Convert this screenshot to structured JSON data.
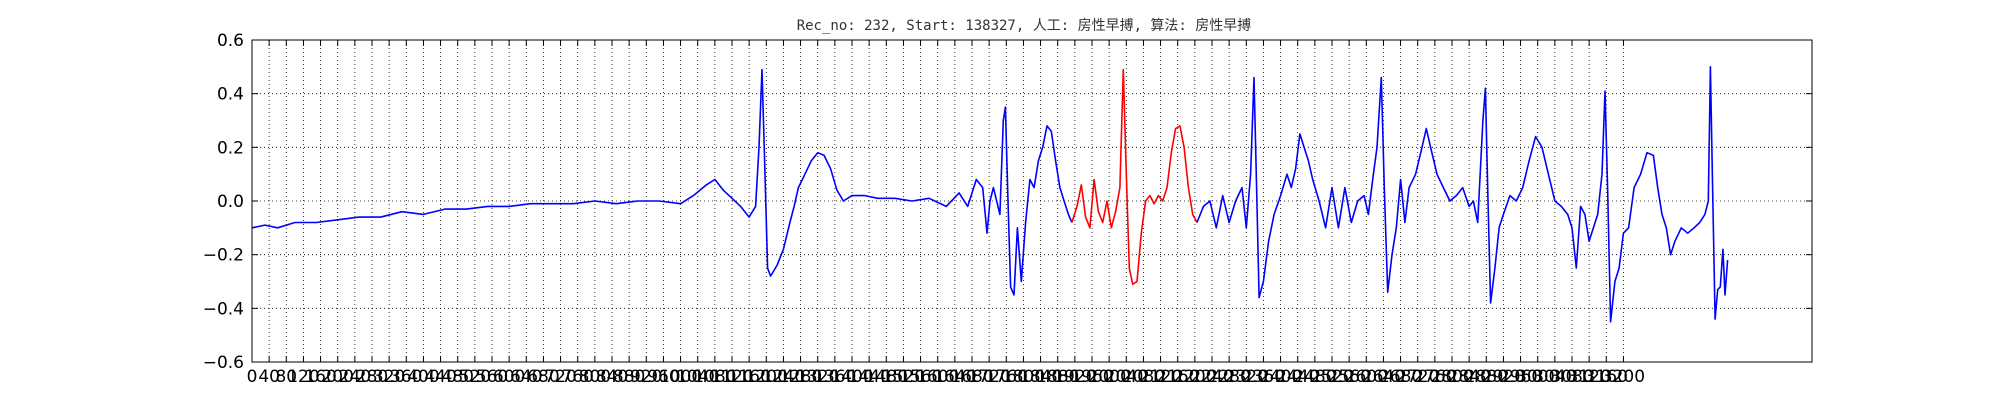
{
  "chart_data": {
    "type": "line",
    "title": "Rec_no: 232, Start: 138327, 人工: 房性早搏, 算法: 房性早搏",
    "xlabel": "",
    "ylabel": "",
    "xlim": [
      0,
      3640
    ],
    "ylim": [
      -0.6,
      0.6
    ],
    "grid": true,
    "xticks": [
      0,
      40,
      80,
      120,
      160,
      200,
      240,
      280,
      320,
      360,
      400,
      440,
      480,
      520,
      560,
      600,
      640,
      680,
      720,
      760,
      800,
      840,
      880,
      920,
      960,
      1000,
      1040,
      1080,
      1120,
      1160,
      1200,
      1240,
      1280,
      1320,
      1360,
      1400,
      1440,
      1480,
      1520,
      1560,
      1600,
      1640,
      1680,
      1720,
      1760,
      1800,
      1840,
      1880,
      1920,
      1960,
      2000,
      2040,
      2080,
      2120,
      2160,
      2200,
      2240,
      2280,
      2320,
      2360,
      2400,
      2440,
      2480,
      2520,
      2560,
      2600,
      2640,
      2680,
      2720,
      2760,
      2800,
      2840,
      2880,
      2920,
      2960,
      3000,
      3040,
      3080,
      3120,
      3160,
      3200
    ],
    "yticks": [
      -0.6,
      -0.4,
      -0.2,
      0.0,
      0.2,
      0.4,
      0.6
    ],
    "ytick_labels": [
      "−0.6",
      "−0.4",
      "−0.2",
      "0.0",
      "0.2",
      "0.4",
      "0.6"
    ],
    "series": [
      {
        "color": "#0000ff",
        "points": [
          [
            0,
            -0.1
          ],
          [
            30,
            -0.09
          ],
          [
            60,
            -0.1
          ],
          [
            100,
            -0.08
          ],
          [
            150,
            -0.08
          ],
          [
            200,
            -0.07
          ],
          [
            250,
            -0.06
          ],
          [
            300,
            -0.06
          ],
          [
            350,
            -0.04
          ],
          [
            400,
            -0.05
          ],
          [
            450,
            -0.03
          ],
          [
            500,
            -0.03
          ],
          [
            550,
            -0.02
          ],
          [
            600,
            -0.02
          ],
          [
            650,
            -0.01
          ],
          [
            700,
            -0.01
          ],
          [
            750,
            -0.01
          ],
          [
            800,
            0.0
          ],
          [
            850,
            -0.01
          ],
          [
            900,
            0.0
          ],
          [
            950,
            0.0
          ],
          [
            1000,
            -0.01
          ],
          [
            1030,
            0.02
          ],
          [
            1060,
            0.06
          ],
          [
            1080,
            0.08
          ],
          [
            1100,
            0.04
          ],
          [
            1120,
            0.01
          ],
          [
            1140,
            -0.02
          ],
          [
            1160,
            -0.06
          ],
          [
            1175,
            -0.02
          ],
          [
            1183,
            0.2
          ],
          [
            1190,
            0.49
          ],
          [
            1197,
            0.1
          ],
          [
            1203,
            -0.25
          ],
          [
            1210,
            -0.28
          ],
          [
            1225,
            -0.24
          ],
          [
            1240,
            -0.18
          ],
          [
            1255,
            -0.08
          ],
          [
            1265,
            -0.02
          ],
          [
            1275,
            0.05
          ],
          [
            1290,
            0.1
          ],
          [
            1305,
            0.15
          ],
          [
            1320,
            0.18
          ],
          [
            1335,
            0.17
          ],
          [
            1350,
            0.12
          ],
          [
            1365,
            0.04
          ],
          [
            1380,
            0.0
          ],
          [
            1400,
            0.02
          ],
          [
            1430,
            0.02
          ],
          [
            1460,
            0.01
          ],
          [
            1500,
            0.01
          ],
          [
            1540,
            0.0
          ],
          [
            1580,
            0.01
          ],
          [
            1620,
            -0.02
          ],
          [
            1650,
            0.03
          ],
          [
            1670,
            -0.02
          ],
          [
            1690,
            0.08
          ],
          [
            1705,
            0.05
          ],
          [
            1715,
            -0.12
          ],
          [
            1722,
            0.0
          ],
          [
            1730,
            0.05
          ],
          [
            1745,
            -0.05
          ],
          [
            1753,
            0.3
          ],
          [
            1758,
            0.35
          ],
          [
            1764,
            0.0
          ],
          [
            1770,
            -0.32
          ],
          [
            1778,
            -0.35
          ],
          [
            1786,
            -0.1
          ],
          [
            1795,
            -0.3
          ],
          [
            1805,
            -0.08
          ],
          [
            1815,
            0.08
          ],
          [
            1825,
            0.05
          ],
          [
            1835,
            0.15
          ],
          [
            1845,
            0.2
          ],
          [
            1855,
            0.28
          ],
          [
            1865,
            0.26
          ],
          [
            1875,
            0.15
          ],
          [
            1885,
            0.05
          ],
          [
            1895,
            0.0
          ],
          [
            1905,
            -0.05
          ],
          [
            1913,
            -0.08
          ]
        ]
      },
      {
        "color": "#ff0000",
        "points": [
          [
            1913,
            -0.08
          ],
          [
            1925,
            -0.02
          ],
          [
            1935,
            0.06
          ],
          [
            1945,
            -0.06
          ],
          [
            1955,
            -0.1
          ],
          [
            1965,
            0.08
          ],
          [
            1975,
            -0.04
          ],
          [
            1985,
            -0.08
          ],
          [
            1995,
            0.0
          ],
          [
            2005,
            -0.1
          ],
          [
            2015,
            -0.04
          ],
          [
            2025,
            0.05
          ],
          [
            2033,
            0.49
          ],
          [
            2040,
            0.1
          ],
          [
            2047,
            -0.25
          ],
          [
            2055,
            -0.31
          ],
          [
            2065,
            -0.3
          ],
          [
            2075,
            -0.12
          ],
          [
            2085,
            0.0
          ],
          [
            2095,
            0.02
          ],
          [
            2105,
            -0.01
          ],
          [
            2115,
            0.02
          ],
          [
            2125,
            0.0
          ],
          [
            2135,
            0.05
          ],
          [
            2145,
            0.18
          ],
          [
            2155,
            0.27
          ],
          [
            2165,
            0.28
          ],
          [
            2175,
            0.2
          ],
          [
            2185,
            0.05
          ],
          [
            2195,
            -0.05
          ],
          [
            2205,
            -0.08
          ]
        ]
      },
      {
        "color": "#0000ff",
        "points": [
          [
            2205,
            -0.08
          ],
          [
            2220,
            -0.02
          ],
          [
            2235,
            0.0
          ],
          [
            2250,
            -0.1
          ],
          [
            2265,
            0.02
          ],
          [
            2280,
            -0.08
          ],
          [
            2295,
            0.0
          ],
          [
            2310,
            0.05
          ],
          [
            2320,
            -0.1
          ],
          [
            2330,
            0.1
          ],
          [
            2338,
            0.46
          ],
          [
            2344,
            0.05
          ],
          [
            2350,
            -0.36
          ],
          [
            2360,
            -0.3
          ],
          [
            2372,
            -0.15
          ],
          [
            2385,
            -0.05
          ],
          [
            2400,
            0.02
          ],
          [
            2415,
            0.1
          ],
          [
            2425,
            0.05
          ],
          [
            2435,
            0.12
          ],
          [
            2445,
            0.25
          ],
          [
            2455,
            0.2
          ],
          [
            2465,
            0.15
          ],
          [
            2475,
            0.08
          ],
          [
            2490,
            0.0
          ],
          [
            2505,
            -0.1
          ],
          [
            2520,
            0.05
          ],
          [
            2535,
            -0.1
          ],
          [
            2550,
            0.05
          ],
          [
            2565,
            -0.08
          ],
          [
            2580,
            0.0
          ],
          [
            2595,
            0.02
          ],
          [
            2605,
            -0.05
          ],
          [
            2615,
            0.08
          ],
          [
            2625,
            0.2
          ],
          [
            2635,
            0.46
          ],
          [
            2642,
            0.05
          ],
          [
            2650,
            -0.34
          ],
          [
            2660,
            -0.2
          ],
          [
            2670,
            -0.1
          ],
          [
            2680,
            0.08
          ],
          [
            2690,
            -0.08
          ],
          [
            2700,
            0.05
          ],
          [
            2715,
            0.1
          ],
          [
            2730,
            0.2
          ],
          [
            2740,
            0.27
          ],
          [
            2750,
            0.2
          ],
          [
            2765,
            0.1
          ],
          [
            2780,
            0.05
          ],
          [
            2795,
            0.0
          ],
          [
            2810,
            0.02
          ],
          [
            2825,
            0.05
          ],
          [
            2840,
            -0.02
          ],
          [
            2850,
            0.0
          ],
          [
            2860,
            -0.08
          ],
          [
            2872,
            0.3
          ],
          [
            2878,
            0.42
          ],
          [
            2884,
            0.0
          ],
          [
            2890,
            -0.38
          ],
          [
            2900,
            -0.25
          ],
          [
            2910,
            -0.1
          ],
          [
            2920,
            -0.05
          ],
          [
            2935,
            0.02
          ],
          [
            2950,
            0.0
          ],
          [
            2965,
            0.05
          ],
          [
            2980,
            0.15
          ],
          [
            2995,
            0.24
          ],
          [
            3010,
            0.2
          ],
          [
            3025,
            0.1
          ],
          [
            3040,
            0.0
          ],
          [
            3055,
            -0.02
          ],
          [
            3070,
            -0.05
          ],
          [
            3080,
            -0.1
          ],
          [
            3090,
            -0.25
          ],
          [
            3100,
            -0.02
          ],
          [
            3110,
            -0.05
          ],
          [
            3120,
            -0.15
          ],
          [
            3130,
            -0.1
          ],
          [
            3140,
            -0.05
          ],
          [
            3150,
            0.1
          ],
          [
            3157,
            0.41
          ],
          [
            3163,
            0.05
          ],
          [
            3170,
            -0.45
          ],
          [
            3180,
            -0.3
          ],
          [
            3190,
            -0.25
          ],
          [
            3200,
            -0.12
          ],
          [
            3212,
            -0.1
          ],
          [
            3225,
            0.05
          ],
          [
            3240,
            0.1
          ],
          [
            3255,
            0.18
          ],
          [
            3270,
            0.17
          ],
          [
            3280,
            0.05
          ],
          [
            3290,
            -0.05
          ],
          [
            3300,
            -0.1
          ],
          [
            3310,
            -0.2
          ],
          [
            3320,
            -0.15
          ],
          [
            3335,
            -0.1
          ],
          [
            3350,
            -0.12
          ],
          [
            3365,
            -0.1
          ],
          [
            3378,
            -0.08
          ],
          [
            3390,
            -0.05
          ],
          [
            3398,
            0.0
          ],
          [
            3403,
            0.5
          ],
          [
            3408,
            0.05
          ],
          [
            3414,
            -0.44
          ],
          [
            3420,
            -0.33
          ],
          [
            3426,
            -0.32
          ],
          [
            3432,
            -0.18
          ],
          [
            3437,
            -0.35
          ],
          [
            3443,
            -0.22
          ]
        ]
      }
    ]
  }
}
